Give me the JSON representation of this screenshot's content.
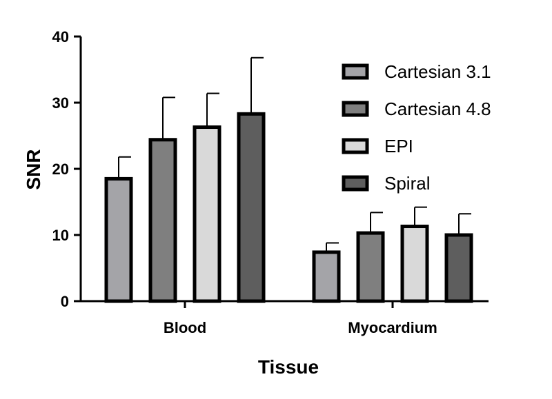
{
  "chart_data": {
    "type": "bar",
    "xlabel": "Tissue",
    "ylabel": "SNR",
    "categories": [
      "Blood",
      "Myocardium"
    ],
    "ylim": [
      0,
      40
    ],
    "yticks": [
      "0",
      "10",
      "20",
      "30",
      "40"
    ],
    "grid": false,
    "legend_position": "top-right",
    "series": [
      {
        "name": "Cartesian 3.1",
        "values": [
          18.5,
          7.4
        ],
        "errors": [
          3.3,
          1.4
        ],
        "color": "#a4a4a8"
      },
      {
        "name": "Cartesian 4.8",
        "values": [
          24.4,
          10.3
        ],
        "errors": [
          6.4,
          3.1
        ],
        "color": "#7f7f7f"
      },
      {
        "name": "EPI",
        "values": [
          26.3,
          11.3
        ],
        "errors": [
          5.1,
          2.9
        ],
        "color": "#d9d9d9"
      },
      {
        "name": "Spiral",
        "values": [
          28.3,
          10.0
        ],
        "errors": [
          8.5,
          3.2
        ],
        "color": "#5e5e5e"
      }
    ]
  }
}
